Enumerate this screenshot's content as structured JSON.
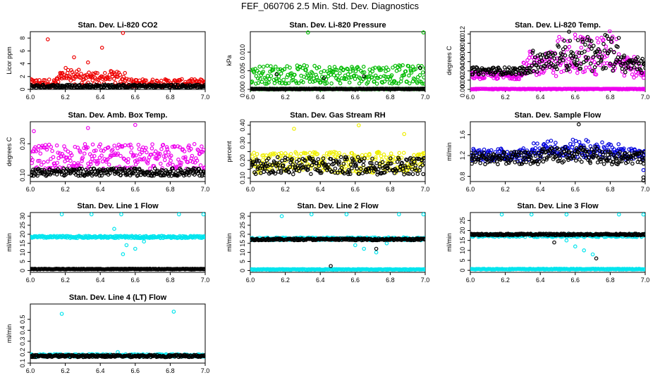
{
  "figure": {
    "title": "FEF_060706  2.5 Min. Std. Dev. Diagnostics",
    "x_tick_labels": [
      "6.0",
      "6.2",
      "6.4",
      "6.6",
      "6.8",
      "7.0"
    ]
  },
  "chart_data": [
    {
      "type": "scatter",
      "title": "Stan. Dev. Li-820 CO2",
      "xlabel": "",
      "ylabel": "Licor ppm",
      "xlim": [
        6.0,
        7.0
      ],
      "ylim": [
        0,
        9
      ],
      "yticks": [
        0,
        2,
        4,
        6,
        8
      ],
      "ytick_labels": [
        "0",
        "2",
        "4",
        "6",
        "8"
      ],
      "series": [
        {
          "color": "#ee0000",
          "base": 1.0,
          "spread": 0.6,
          "bumps": [
            [
              6.15,
              6.3,
              2.0
            ],
            [
              6.3,
              6.45,
              1.5
            ],
            [
              6.45,
              6.56,
              1.8
            ]
          ],
          "outliers": [
            [
              6.1,
              7.8
            ],
            [
              6.53,
              8.8
            ],
            [
              6.41,
              6.5
            ],
            [
              6.25,
              5.0
            ],
            [
              6.33,
              4.2
            ]
          ]
        },
        {
          "color": "#000000",
          "base": 0.5,
          "spread": 0.25,
          "bumps": [],
          "outliers": []
        }
      ]
    },
    {
      "type": "scatter",
      "title": "Stan. Dev. Li-820 Pressure",
      "xlabel": "",
      "ylabel": "kPa",
      "xlim": [
        6.0,
        7.0
      ],
      "ylim": [
        0,
        0.0155
      ],
      "yticks": [
        0,
        0.005,
        0.01
      ],
      "ytick_labels": [
        "0.000",
        "0.005",
        "0.010"
      ],
      "series": [
        {
          "color": "#00bb00",
          "base": 0.004,
          "spread": 0.0025,
          "bumps": [],
          "outliers": [
            [
              6.33,
              0.0153
            ],
            [
              6.99,
              0.0153
            ]
          ]
        },
        {
          "color": "#00bb00",
          "base": 0.0001,
          "spread": 0.0001,
          "bumps": [],
          "outliers": []
        },
        {
          "color": "#000000",
          "base": 0.0001,
          "spread": 0.0001,
          "bumps": [],
          "outliers": [
            [
              6.15,
              0.004
            ],
            [
              6.42,
              0.003
            ],
            [
              6.65,
              0.0035
            ],
            [
              6.97,
              0.0058
            ]
          ]
        }
      ]
    },
    {
      "type": "scatter",
      "title": "Stan. Dev. Li-820 Temp.",
      "xlabel": "",
      "ylabel": "degrees C",
      "xlim": [
        6.0,
        7.0
      ],
      "ylim": [
        0,
        0.0125
      ],
      "yticks": [
        0,
        0.002,
        0.004,
        0.006,
        0.008,
        0.01,
        0.012
      ],
      "ytick_labels": [
        "0.000",
        "0.002",
        "0.004",
        "0.006",
        "0.008",
        "0.010",
        "0.012"
      ],
      "series": [
        {
          "color": "#ee00ee",
          "base": 0.003,
          "spread": 0.0008,
          "bumps": [
            [
              6.3,
              6.5,
              0.005
            ],
            [
              6.5,
              6.85,
              0.009
            ],
            [
              6.85,
              6.97,
              0.0045
            ]
          ],
          "outliers": [
            [
              6.99,
              0.0
            ]
          ]
        },
        {
          "color": "#ee00ee",
          "base": 0.0,
          "spread": 0.0001,
          "bumps": [],
          "outliers": []
        },
        {
          "color": "#000000",
          "base": 0.004,
          "spread": 0.0008,
          "bumps": [
            [
              6.35,
              6.5,
              0.004
            ],
            [
              6.5,
              6.85,
              0.008
            ],
            [
              6.85,
              7.0,
              0.003
            ]
          ],
          "outliers": []
        }
      ]
    },
    {
      "type": "scatter",
      "title": "Stan. Dev. Amb. Box Temp.",
      "xlabel": "",
      "ylabel": "degrees C",
      "xlim": [
        6.0,
        7.0
      ],
      "ylim": [
        0.08,
        0.27
      ],
      "yticks": [
        0.1,
        0.2
      ],
      "ytick_labels": [
        "0.10",
        "0.20"
      ],
      "series": [
        {
          "color": "#ee00ee",
          "base": 0.16,
          "spread": 0.04,
          "bumps": [],
          "outliers": [
            [
              6.6,
              0.26
            ],
            [
              6.33,
              0.25
            ],
            [
              6.02,
              0.24
            ]
          ]
        },
        {
          "color": "#000000",
          "base": 0.11,
          "spread": 0.012,
          "bumps": [],
          "outliers": []
        }
      ]
    },
    {
      "type": "scatter",
      "title": "Stan. Dev. Gas Stream RH",
      "xlabel": "",
      "ylabel": "percent",
      "xlim": [
        6.0,
        7.0
      ],
      "ylim": [
        0.08,
        0.42
      ],
      "yticks": [
        0.1,
        0.15,
        0.2,
        0.25,
        0.3,
        0.35,
        0.4
      ],
      "ytick_labels": [
        "0.10",
        "",
        "0.20",
        "",
        "0.30",
        "",
        "0.40"
      ],
      "series": [
        {
          "color": "#eeee00",
          "base": 0.19,
          "spread": 0.06,
          "bumps": [],
          "outliers": [
            [
              6.25,
              0.38
            ],
            [
              6.62,
              0.4
            ],
            [
              6.88,
              0.35
            ]
          ]
        },
        {
          "color": "#000000",
          "base": 0.17,
          "spread": 0.05,
          "bumps": [],
          "outliers": []
        }
      ]
    },
    {
      "type": "scatter",
      "title": "Stan. Dev. Sample Flow",
      "xlabel": "",
      "ylabel": "ml/min",
      "xlim": [
        6.0,
        7.0
      ],
      "ylim": [
        0.7,
        1.85
      ],
      "yticks": [
        0.8,
        1.2,
        1.6
      ],
      "ytick_labels": [
        "0.8",
        "1.2",
        "1.6"
      ],
      "series": [
        {
          "color": "#0000dd",
          "base": 1.22,
          "spread": 0.12,
          "bumps": [
            [
              6.35,
              6.85,
              0.18
            ]
          ],
          "outliers": [
            [
              6.99,
              0.92
            ]
          ]
        },
        {
          "color": "#000000",
          "base": 1.15,
          "spread": 0.12,
          "bumps": [
            [
              6.4,
              6.8,
              0.12
            ]
          ],
          "outliers": [
            [
              6.62,
              1.8
            ],
            [
              6.99,
              0.78
            ],
            [
              6.99,
              0.72
            ]
          ]
        }
      ]
    },
    {
      "type": "scatter",
      "title": "Stan. Dev. Line 1 Flow",
      "xlabel": "",
      "ylabel": "ml/min",
      "xlim": [
        6.0,
        7.0
      ],
      "ylim": [
        -1,
        32
      ],
      "yticks": [
        0,
        5,
        10,
        15,
        20,
        25,
        30
      ],
      "ytick_labels": [
        "0",
        "5",
        "10",
        "15",
        "20",
        "25",
        "30"
      ],
      "series": [
        {
          "color": "#00e5ee",
          "base": 18.5,
          "spread": 0.6,
          "bumps": [],
          "outliers": [
            [
              6.18,
              31
            ],
            [
              6.35,
              31
            ],
            [
              6.52,
              31
            ],
            [
              6.85,
              31
            ],
            [
              6.99,
              31
            ],
            [
              6.48,
              23
            ],
            [
              6.55,
              14
            ],
            [
              6.6,
              12
            ],
            [
              6.65,
              16
            ],
            [
              6.53,
              9
            ]
          ]
        },
        {
          "color": "#000000",
          "base": 0.8,
          "spread": 0.2,
          "bumps": [],
          "outliers": []
        }
      ]
    },
    {
      "type": "scatter",
      "title": "Stan. Dev. Line 2 Flow",
      "xlabel": "",
      "ylabel": "ml/min",
      "xlim": [
        6.0,
        7.0
      ],
      "ylim": [
        -1,
        32
      ],
      "yticks": [
        0,
        5,
        10,
        15,
        20,
        25,
        30
      ],
      "ytick_labels": [
        "0",
        "5",
        "10",
        "15",
        "20",
        "25",
        "30"
      ],
      "series": [
        {
          "color": "#00e5ee",
          "base": 0.6,
          "spread": 0.2,
          "bumps": [],
          "outliers": [
            [
              6.18,
              30
            ],
            [
              6.35,
              31
            ],
            [
              6.55,
              31
            ],
            [
              6.85,
              31
            ],
            [
              6.99,
              31
            ],
            [
              6.6,
              14
            ],
            [
              6.65,
              12
            ],
            [
              6.72,
              10
            ],
            [
              6.78,
              15
            ]
          ]
        },
        {
          "color": "#00e5ee",
          "base": 17.5,
          "spread": 0.8,
          "bumps": [],
          "outliers": []
        },
        {
          "color": "#000000",
          "base": 17.2,
          "spread": 0.5,
          "bumps": [],
          "outliers": [
            [
              6.46,
              2.5
            ],
            [
              6.72,
              12
            ]
          ]
        }
      ]
    },
    {
      "type": "scatter",
      "title": "Stan. Dev. Line 3 Flow",
      "xlabel": "",
      "ylabel": "ml/min",
      "xlim": [
        6.0,
        7.0
      ],
      "ylim": [
        -1,
        29
      ],
      "yticks": [
        0,
        5,
        10,
        15,
        20,
        25
      ],
      "ytick_labels": [
        "0",
        "5",
        "10",
        "15",
        "20",
        "25"
      ],
      "series": [
        {
          "color": "#00e5ee",
          "base": 0.6,
          "spread": 0.2,
          "bumps": [],
          "outliers": [
            [
              6.18,
              28
            ],
            [
              6.35,
              28
            ],
            [
              6.55,
              28
            ],
            [
              6.85,
              28
            ],
            [
              6.99,
              28
            ],
            [
              6.6,
              12
            ],
            [
              6.65,
              10
            ],
            [
              6.55,
              15
            ],
            [
              6.7,
              8
            ]
          ]
        },
        {
          "color": "#00e5ee",
          "base": 17.5,
          "spread": 0.8,
          "bumps": [],
          "outliers": []
        },
        {
          "color": "#000000",
          "base": 18.0,
          "spread": 0.4,
          "bumps": [],
          "outliers": [
            [
              6.48,
              14
            ],
            [
              6.72,
              6
            ]
          ]
        }
      ]
    },
    {
      "type": "scatter",
      "title": "Stan. Dev. Line 4 (LT) Flow",
      "xlabel": "",
      "ylabel": "ml/min",
      "xlim": [
        6.0,
        7.0
      ],
      "ylim": [
        0.1,
        0.64
      ],
      "yticks": [
        0.1,
        0.2,
        0.3,
        0.4,
        0.5
      ],
      "ytick_labels": [
        "0.1",
        "0.2",
        "0.3",
        "0.4",
        "0.5"
      ],
      "series": [
        {
          "color": "#00e5ee",
          "base": 0.17,
          "spread": 0.012,
          "bumps": [],
          "outliers": [
            [
              6.18,
              0.55
            ],
            [
              6.82,
              0.57
            ],
            [
              6.5,
              0.2
            ]
          ]
        },
        {
          "color": "#000000",
          "base": 0.165,
          "spread": 0.01,
          "bumps": [],
          "outliers": []
        }
      ]
    }
  ]
}
